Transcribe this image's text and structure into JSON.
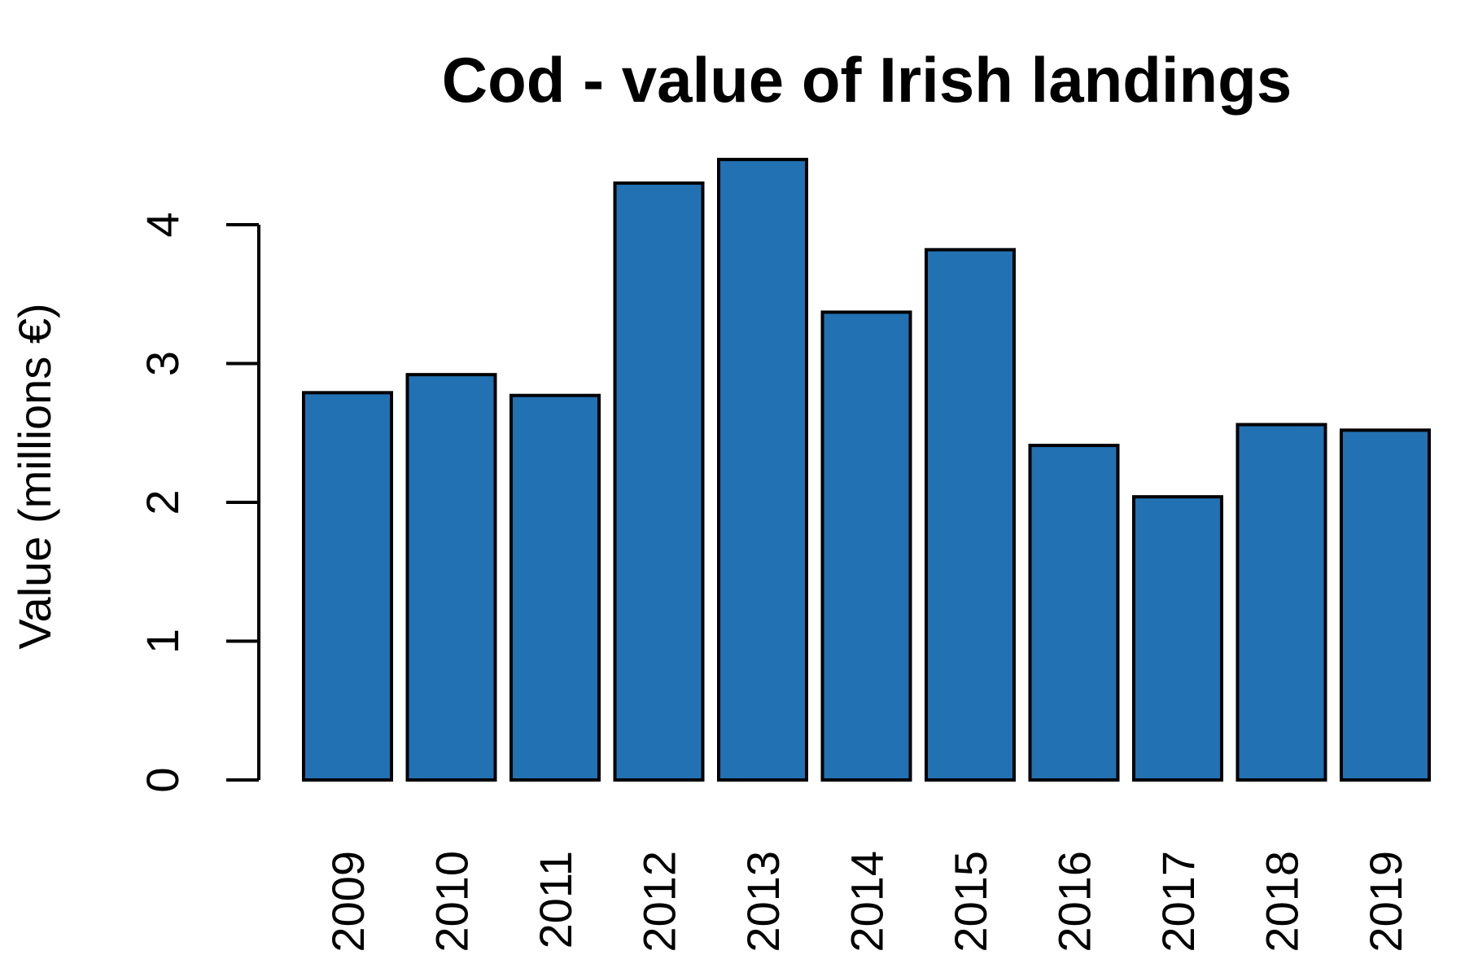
{
  "chart_data": {
    "type": "bar",
    "title": "Cod - value of Irish landings",
    "xlabel": "",
    "ylabel": "Value (millions €)",
    "categories": [
      "2009",
      "2010",
      "2011",
      "2012",
      "2013",
      "2014",
      "2015",
      "2016",
      "2017",
      "2018",
      "2019"
    ],
    "values": [
      2.79,
      2.92,
      2.77,
      4.3,
      4.47,
      3.37,
      3.82,
      2.41,
      2.04,
      2.56,
      2.52
    ],
    "ylim": [
      0,
      4
    ],
    "yticks": [
      "0",
      "1",
      "2",
      "3",
      "4"
    ],
    "bar_color": "#2271b2",
    "grid": false,
    "legend": "none"
  }
}
